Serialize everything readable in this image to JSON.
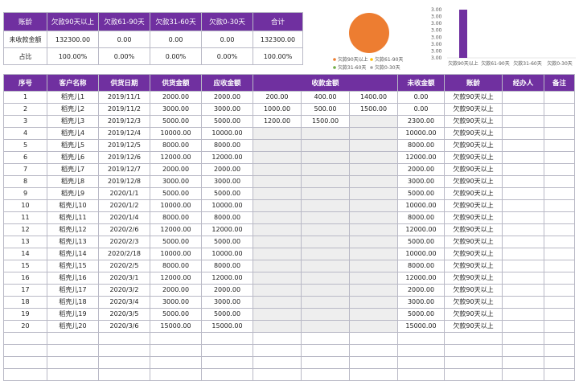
{
  "summary": {
    "headers": [
      "账龄",
      "欠款90天以上",
      "欠款61-90天",
      "欠款31-60天",
      "欠款0-30天",
      "合计"
    ],
    "rows": [
      [
        "未收款金额",
        "132300.00",
        "0.00",
        "0.00",
        "0.00",
        "132300.00"
      ],
      [
        "占比",
        "100.00%",
        "0.00%",
        "0.00%",
        "0.00%",
        "100.00%"
      ]
    ]
  },
  "colors": {
    "accent": "#7030a0",
    "pie_orange": "#ed7d31",
    "legend_yellow": "#ffc000",
    "legend_green": "#70ad47",
    "legend_grey": "#a5a5a5"
  },
  "chart_data": [
    {
      "type": "pie",
      "categories": [
        "欠款90天以上",
        "欠款61-90天",
        "欠款31-60天",
        "欠款0-30天"
      ],
      "values": [
        132300,
        0,
        0,
        0
      ],
      "legend_position": "bottom"
    },
    {
      "type": "bar",
      "categories": [
        "欠款90天以上",
        "欠款61-90天",
        "欠款31-60天",
        "欠款0-30天"
      ],
      "values": [
        132300,
        0,
        0,
        0
      ],
      "ytick_labels": [
        "3.00",
        "3.00",
        "3.00",
        "3.00",
        "3.00",
        "3.00",
        "3.00",
        "3.00"
      ]
    }
  ],
  "main": {
    "headers": [
      "序号",
      "客户名称",
      "供货日期",
      "供货金额",
      "应收金额",
      "收款金额",
      "未收金额",
      "账龄",
      "经办人",
      "备注"
    ],
    "rows": [
      [
        "1",
        "稻壳儿1",
        "2019/11/1",
        "2000.00",
        "2000.00",
        "200.00",
        "400.00",
        "1400.00",
        "0.00",
        "欠款90天以上",
        "",
        ""
      ],
      [
        "2",
        "稻壳儿2",
        "2019/11/2",
        "3000.00",
        "3000.00",
        "1000.00",
        "500.00",
        "1500.00",
        "0.00",
        "欠款90天以上",
        "",
        ""
      ],
      [
        "3",
        "稻壳儿3",
        "2019/12/3",
        "5000.00",
        "5000.00",
        "1200.00",
        "1500.00",
        "",
        "2300.00",
        "欠款90天以上",
        "",
        ""
      ],
      [
        "4",
        "稻壳儿4",
        "2019/12/4",
        "10000.00",
        "10000.00",
        "",
        "",
        "",
        "10000.00",
        "欠款90天以上",
        "",
        ""
      ],
      [
        "5",
        "稻壳儿5",
        "2019/12/5",
        "8000.00",
        "8000.00",
        "",
        "",
        "",
        "8000.00",
        "欠款90天以上",
        "",
        ""
      ],
      [
        "6",
        "稻壳儿6",
        "2019/12/6",
        "12000.00",
        "12000.00",
        "",
        "",
        "",
        "12000.00",
        "欠款90天以上",
        "",
        ""
      ],
      [
        "7",
        "稻壳儿7",
        "2019/12/7",
        "2000.00",
        "2000.00",
        "",
        "",
        "",
        "2000.00",
        "欠款90天以上",
        "",
        ""
      ],
      [
        "8",
        "稻壳儿8",
        "2019/12/8",
        "3000.00",
        "3000.00",
        "",
        "",
        "",
        "3000.00",
        "欠款90天以上",
        "",
        ""
      ],
      [
        "9",
        "稻壳儿9",
        "2020/1/1",
        "5000.00",
        "5000.00",
        "",
        "",
        "",
        "5000.00",
        "欠款90天以上",
        "",
        ""
      ],
      [
        "10",
        "稻壳儿10",
        "2020/1/2",
        "10000.00",
        "10000.00",
        "",
        "",
        "",
        "10000.00",
        "欠款90天以上",
        "",
        ""
      ],
      [
        "11",
        "稻壳儿11",
        "2020/1/4",
        "8000.00",
        "8000.00",
        "",
        "",
        "",
        "8000.00",
        "欠款90天以上",
        "",
        ""
      ],
      [
        "12",
        "稻壳儿12",
        "2020/2/6",
        "12000.00",
        "12000.00",
        "",
        "",
        "",
        "12000.00",
        "欠款90天以上",
        "",
        ""
      ],
      [
        "13",
        "稻壳儿13",
        "2020/2/3",
        "5000.00",
        "5000.00",
        "",
        "",
        "",
        "5000.00",
        "欠款90天以上",
        "",
        ""
      ],
      [
        "14",
        "稻壳儿14",
        "2020/2/18",
        "10000.00",
        "10000.00",
        "",
        "",
        "",
        "10000.00",
        "欠款90天以上",
        "",
        ""
      ],
      [
        "15",
        "稻壳儿15",
        "2020/2/5",
        "8000.00",
        "8000.00",
        "",
        "",
        "",
        "8000.00",
        "欠款90天以上",
        "",
        ""
      ],
      [
        "16",
        "稻壳儿16",
        "2020/3/1",
        "12000.00",
        "12000.00",
        "",
        "",
        "",
        "12000.00",
        "欠款90天以上",
        "",
        ""
      ],
      [
        "17",
        "稻壳儿17",
        "2020/3/2",
        "2000.00",
        "2000.00",
        "",
        "",
        "",
        "2000.00",
        "欠款90天以上",
        "",
        ""
      ],
      [
        "18",
        "稻壳儿18",
        "2020/3/4",
        "3000.00",
        "3000.00",
        "",
        "",
        "",
        "3000.00",
        "欠款90天以上",
        "",
        ""
      ],
      [
        "19",
        "稻壳儿19",
        "2020/3/5",
        "5000.00",
        "5000.00",
        "",
        "",
        "",
        "5000.00",
        "欠款90天以上",
        "",
        ""
      ],
      [
        "20",
        "稻壳儿20",
        "2020/3/6",
        "15000.00",
        "15000.00",
        "",
        "",
        "",
        "15000.00",
        "欠款90天以上",
        "",
        ""
      ]
    ],
    "blank_rows": 4
  }
}
